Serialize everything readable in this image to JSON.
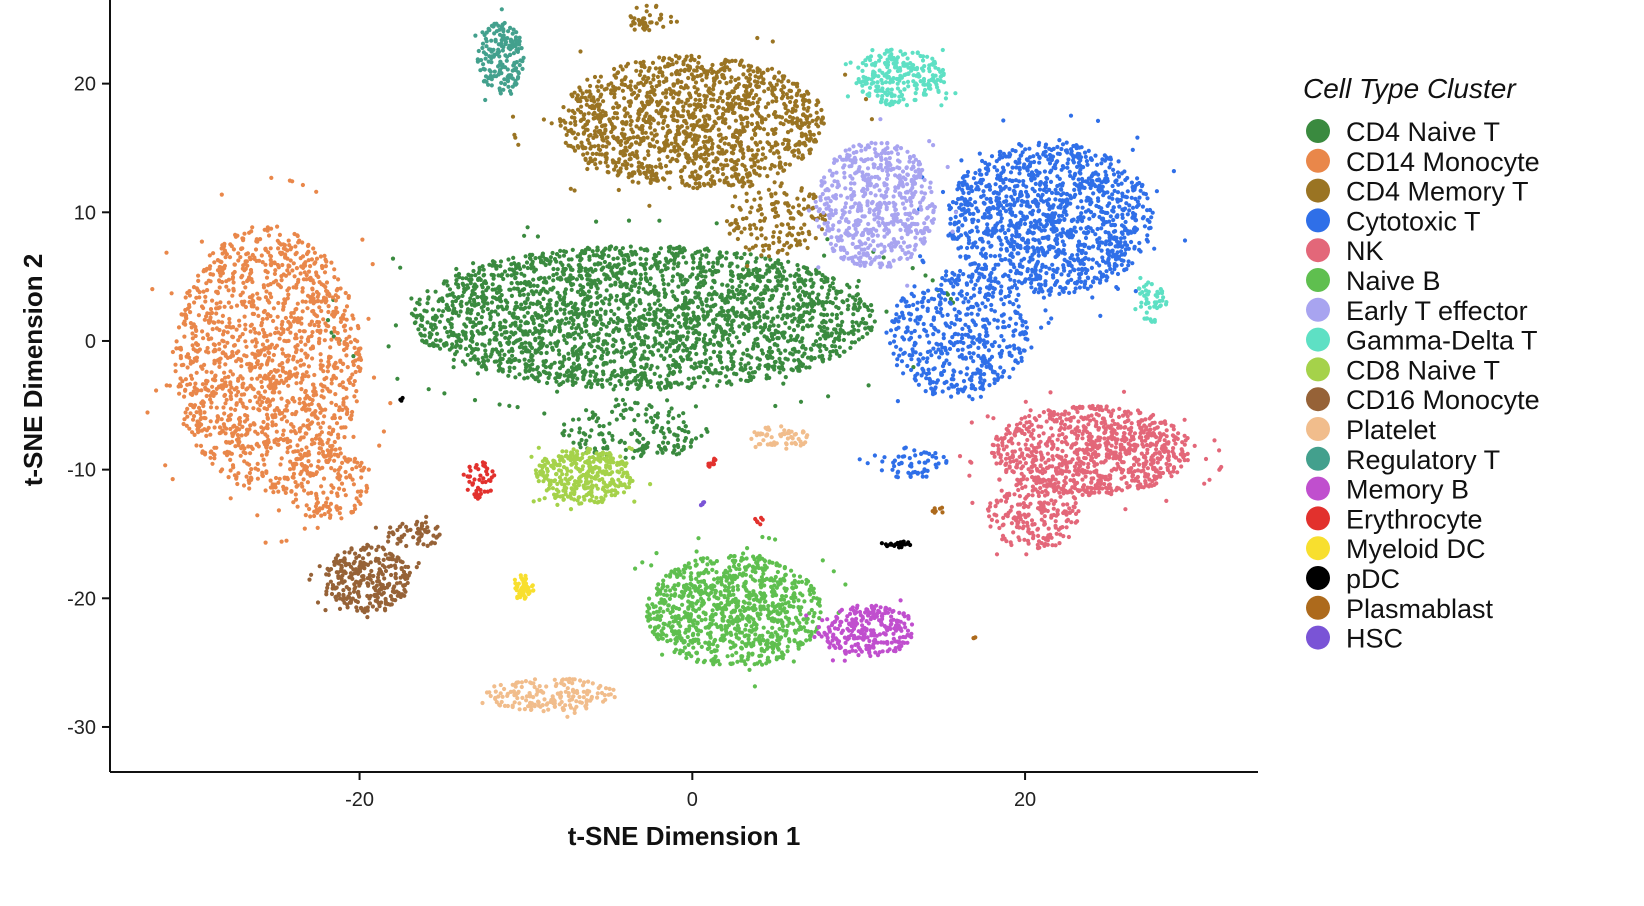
{
  "chart_data": {
    "type": "scatter",
    "xlabel": "t-SNE Dimension 1",
    "ylabel": "t-SNE Dimension 2",
    "xlim": [
      -35,
      34
    ],
    "ylim": [
      -33.5,
      26.5
    ],
    "x_ticks": [
      -20,
      0,
      20
    ],
    "y_ticks": [
      20,
      10,
      0,
      -10,
      -20,
      -30
    ],
    "x_tick_labels": [
      "-20",
      "0",
      "20"
    ],
    "y_tick_labels": [
      "20",
      "10",
      "0",
      "-10",
      "-20",
      "-30"
    ],
    "grid": false,
    "legend": {
      "title": "Cell Type Cluster",
      "placement": "right"
    },
    "series": [
      {
        "name": "CD4 Naive T",
        "color": "#3a8a3f",
        "clusters": [
          {
            "cx": -3.0,
            "cy": 1.8,
            "rx": 14.0,
            "ry": 5.6,
            "n": 2600
          },
          {
            "cx": -3.5,
            "cy": -7.0,
            "rx": 4.5,
            "ry": 2.2,
            "n": 160
          }
        ]
      },
      {
        "name": "CD14 Monocyte",
        "color": "#e9874a",
        "clusters": [
          {
            "cx": -25.5,
            "cy": -1.5,
            "rx": 5.6,
            "ry": 10.5,
            "n": 1500
          },
          {
            "cx": -22.0,
            "cy": -11.0,
            "rx": 2.5,
            "ry": 3.0,
            "n": 140
          }
        ]
      },
      {
        "name": "CD4 Memory T",
        "color": "#9a7423",
        "clusters": [
          {
            "cx": 0.0,
            "cy": 17.0,
            "rx": 8.0,
            "ry": 5.2,
            "n": 1400
          },
          {
            "cx": 5.0,
            "cy": 9.5,
            "rx": 3.0,
            "ry": 3.0,
            "n": 150
          },
          {
            "cx": -2.5,
            "cy": 25.0,
            "rx": 1.3,
            "ry": 1.2,
            "n": 40
          }
        ]
      },
      {
        "name": "Cytotoxic T",
        "color": "#2f6fe8",
        "clusters": [
          {
            "cx": 21.5,
            "cy": 9.5,
            "rx": 6.2,
            "ry": 6.0,
            "n": 1300
          },
          {
            "cx": 16.0,
            "cy": 0.5,
            "rx": 4.2,
            "ry": 5.0,
            "n": 500
          },
          {
            "cx": 13.0,
            "cy": -9.5,
            "rx": 2.5,
            "ry": 1.2,
            "n": 60
          }
        ]
      },
      {
        "name": "NK",
        "color": "#e36779",
        "clusters": [
          {
            "cx": 24.0,
            "cy": -8.5,
            "rx": 6.0,
            "ry": 3.5,
            "n": 900
          },
          {
            "cx": 20.5,
            "cy": -13.5,
            "rx": 2.8,
            "ry": 2.8,
            "n": 220
          }
        ]
      },
      {
        "name": "Naive B",
        "color": "#5fbf4f",
        "clusters": [
          {
            "cx": 2.5,
            "cy": -21.0,
            "rx": 5.3,
            "ry": 4.4,
            "n": 950
          }
        ]
      },
      {
        "name": "Early T effector",
        "color": "#a8a4f0",
        "clusters": [
          {
            "cx": 11.0,
            "cy": 10.5,
            "rx": 3.6,
            "ry": 5.0,
            "n": 600
          }
        ]
      },
      {
        "name": "Gamma-Delta T",
        "color": "#5ee0c4",
        "clusters": [
          {
            "cx": 12.5,
            "cy": 20.5,
            "rx": 2.7,
            "ry": 2.2,
            "n": 250
          },
          {
            "cx": 27.5,
            "cy": 3.0,
            "rx": 1.0,
            "ry": 1.6,
            "n": 50
          }
        ]
      },
      {
        "name": "CD8 Naive T",
        "color": "#a5d24a",
        "clusters": [
          {
            "cx": -6.5,
            "cy": -10.5,
            "rx": 3.0,
            "ry": 2.2,
            "n": 350
          }
        ]
      },
      {
        "name": "CD16 Monocyte",
        "color": "#966237",
        "clusters": [
          {
            "cx": -19.5,
            "cy": -18.5,
            "rx": 2.6,
            "ry": 2.6,
            "n": 300
          },
          {
            "cx": -16.5,
            "cy": -15.0,
            "rx": 2.0,
            "ry": 1.0,
            "n": 60
          }
        ]
      },
      {
        "name": "Platelet",
        "color": "#f1bd8c",
        "clusters": [
          {
            "cx": -8.5,
            "cy": -27.5,
            "rx": 4.0,
            "ry": 1.3,
            "n": 180
          },
          {
            "cx": 5.5,
            "cy": -7.5,
            "rx": 2.0,
            "ry": 0.9,
            "n": 60
          }
        ]
      },
      {
        "name": "Regulatory T",
        "color": "#43a08d",
        "clusters": [
          {
            "cx": -11.5,
            "cy": 22.0,
            "rx": 1.4,
            "ry": 2.8,
            "n": 180
          }
        ]
      },
      {
        "name": "Memory B",
        "color": "#c04fce",
        "clusters": [
          {
            "cx": 10.5,
            "cy": -22.5,
            "rx": 3.0,
            "ry": 2.0,
            "n": 280
          }
        ]
      },
      {
        "name": "Erythrocyte",
        "color": "#e2312d",
        "clusters": [
          {
            "cx": -12.8,
            "cy": -10.8,
            "rx": 1.0,
            "ry": 1.5,
            "n": 45
          },
          {
            "cx": 1.2,
            "cy": -9.5,
            "rx": 0.4,
            "ry": 0.4,
            "n": 10
          },
          {
            "cx": 4.0,
            "cy": -14.0,
            "rx": 0.3,
            "ry": 0.3,
            "n": 6
          }
        ]
      },
      {
        "name": "Myeloid DC",
        "color": "#f8df2e",
        "clusters": [
          {
            "cx": -10.2,
            "cy": -19.2,
            "rx": 0.7,
            "ry": 1.0,
            "n": 50
          }
        ]
      },
      {
        "name": "pDC",
        "color": "#000000",
        "clusters": [
          {
            "cx": 12.2,
            "cy": -15.8,
            "rx": 1.0,
            "ry": 0.25,
            "n": 25
          },
          {
            "cx": -17.5,
            "cy": -4.5,
            "rx": 0.15,
            "ry": 0.15,
            "n": 3
          }
        ]
      },
      {
        "name": "Plasmablast",
        "color": "#ad6a1c",
        "clusters": [
          {
            "cx": 14.8,
            "cy": -13.2,
            "rx": 0.4,
            "ry": 0.3,
            "n": 8
          },
          {
            "cx": 16.9,
            "cy": -23.0,
            "rx": 0.2,
            "ry": 0.15,
            "n": 3
          }
        ]
      },
      {
        "name": "HSC",
        "color": "#7a54d6",
        "clusters": [
          {
            "cx": 0.6,
            "cy": -12.5,
            "rx": 0.2,
            "ry": 0.3,
            "n": 4
          }
        ]
      }
    ]
  }
}
